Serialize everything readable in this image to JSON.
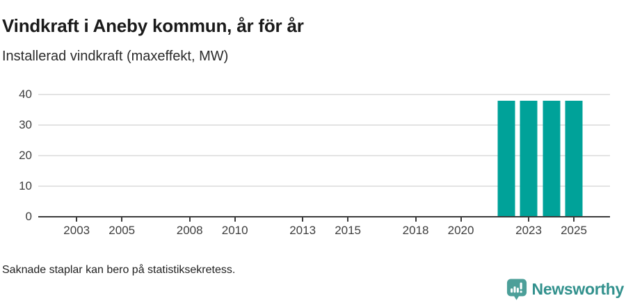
{
  "header": {
    "title": "Vindkraft i Aneby kommun, år för år",
    "subtitle": "Installerad vindkraft (maxeffekt, MW)"
  },
  "footer": {
    "note": "Saknade staplar kan bero på statistiksekretess."
  },
  "branding": {
    "name": "Newsworthy",
    "icon": "newsworthy-speech-bubble-chart-icon",
    "icon_color": "#4c9f99",
    "text_color": "#32918d"
  },
  "chart_data": {
    "type": "bar",
    "title": "Vindkraft i Aneby kommun, år för år",
    "subtitle": "Installerad vindkraft (maxeffekt, MW)",
    "xlabel": "",
    "ylabel": "Installerad vindkraft (maxeffekt, MW)",
    "unit": "MW",
    "bar_color": "#00a299",
    "grid": "horizontal-only",
    "legend": "none",
    "xlim": [
      2001.3,
      2026.6
    ],
    "ylim": [
      0,
      40
    ],
    "x_ticks": [
      2003,
      2005,
      2008,
      2010,
      2013,
      2015,
      2018,
      2020,
      2023,
      2025
    ],
    "y_ticks": [
      0,
      10,
      20,
      30,
      40
    ],
    "bars": [
      {
        "x": 2022,
        "y": 38
      },
      {
        "x": 2023,
        "y": 38
      },
      {
        "x": 2024,
        "y": 38
      },
      {
        "x": 2025,
        "y": 38
      }
    ]
  }
}
